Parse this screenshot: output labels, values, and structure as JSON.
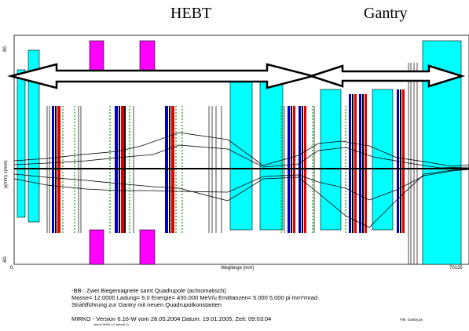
{
  "headings": {
    "left": "HEBT",
    "right": "Gantry"
  },
  "axes": {
    "y_top": "80.",
    "y_bottom": "-60.",
    "y_label": "y(mm)    x(mm)",
    "x_left": "0.",
    "x_right": "70135",
    "x_label": "Weglänge [mm]"
  },
  "info": {
    "line1": "-BB-:  Zwei Biegemagnete samt Quadrupole (achromatisch)",
    "line2": "Masse= 12.0000 Ladung= 6.0 Energie=  430.000 MeV/u Emittanzen=   5.000   5.000 pi mm*mrad",
    "line3": "Strahlführung zur Gantry mit neuen Quadrupolkonstanten",
    "line4": "MIRKO   -   Version  6.16-W  vom  28.05.2004     Datum: 19.01.2005, Zeit: 09:03:04",
    "line5": "sem:0.9999,1.0  (dmod,1)",
    "file": "File: Gantry.ps"
  },
  "colors": {
    "quadrupole": "#00ffff",
    "dipole": "#ff00ff",
    "red": "#e00000",
    "blue": "#0000c0",
    "green": "#00a000"
  }
}
